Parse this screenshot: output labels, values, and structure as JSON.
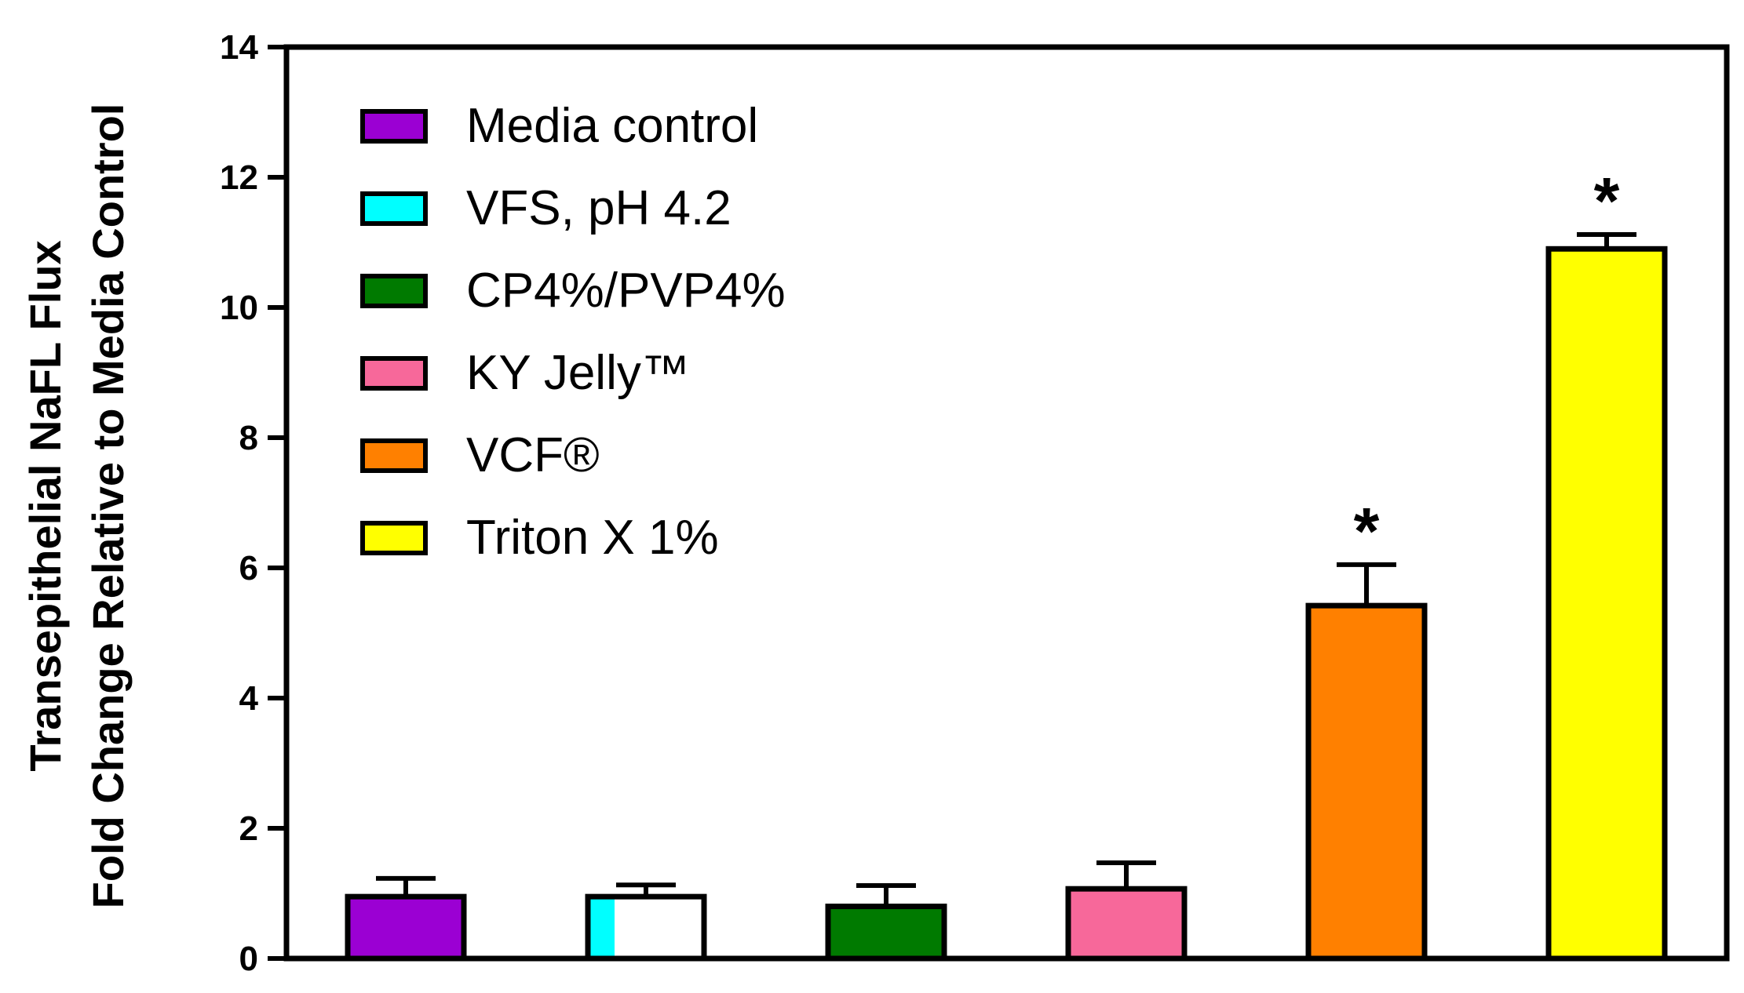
{
  "chart_data": {
    "type": "bar",
    "categories": [
      "Media control",
      "VFS, pH 4.2",
      "CP4%/PVP4%",
      "KY Jelly™",
      "VCF®",
      "Triton X 1%"
    ],
    "values": [
      0.95,
      0.95,
      0.8,
      1.07,
      5.42,
      10.9
    ],
    "errors": [
      0.28,
      0.18,
      0.32,
      0.4,
      0.63,
      0.22
    ],
    "colors": [
      "#9B00D3",
      "#FFFFFF",
      "#007A00",
      "#F7689A",
      "#FF8000",
      "#FFFF00"
    ],
    "fill_accent": {
      "category": "VFS, pH 4.2",
      "color": "#00FFFF"
    },
    "significant": [
      false,
      false,
      false,
      false,
      true,
      true
    ],
    "significance_mark": "*",
    "ylabel_line1": "Transepithelial NaFL Flux",
    "ylabel_line2": "Fold Change Relative to Media Control",
    "ylim": [
      0,
      14
    ],
    "yticks": [
      "0",
      "2",
      "4",
      "6",
      "8",
      "10",
      "12",
      "14"
    ],
    "legend": {
      "position": "top-left",
      "entries": [
        {
          "label": "Media control",
          "color": "#9B00D3"
        },
        {
          "label": "VFS, pH 4.2",
          "color": "#00FFFF"
        },
        {
          "label": "CP4%/PVP4%",
          "color": "#007A00"
        },
        {
          "label": "KY Jelly™",
          "color": "#F7689A"
        },
        {
          "label": "VCF®",
          "color": "#FF8000"
        },
        {
          "label": "Triton X 1%",
          "color": "#FFFF00"
        }
      ]
    },
    "grid": false
  }
}
